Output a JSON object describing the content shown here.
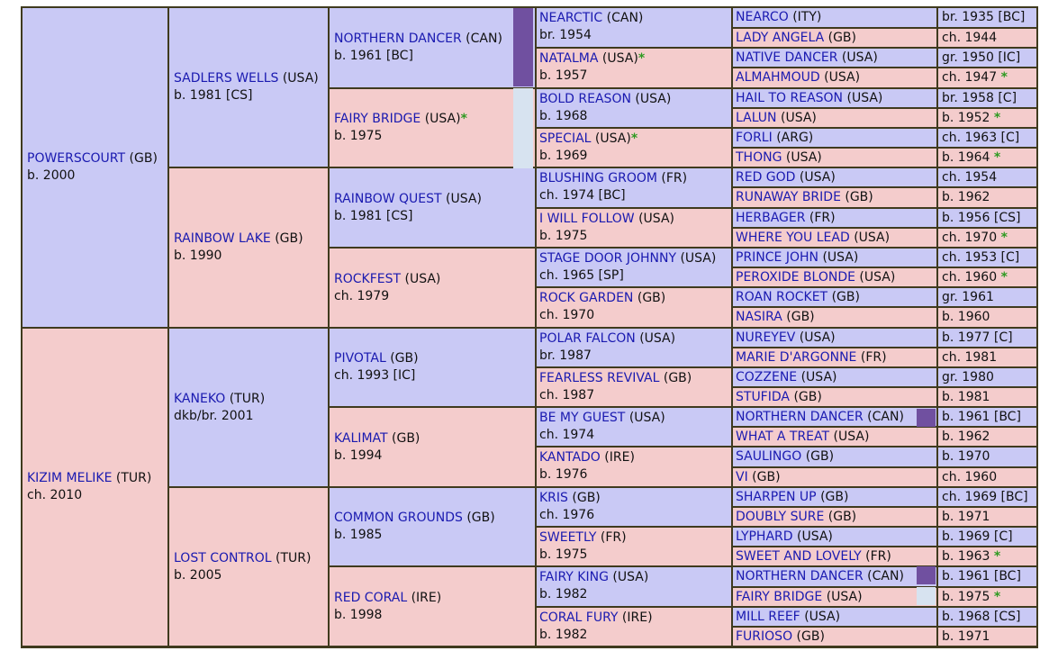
{
  "pedigree": {
    "gen1": [
      {
        "name": "POWERSCOURT",
        "country": "(GB)",
        "info": "b. 2000"
      },
      {
        "name": "KIZIM MELIKE",
        "country": "(TUR)",
        "info": "ch. 2010"
      }
    ],
    "gen2": [
      {
        "name": "SADLERS WELLS",
        "country": "(USA)",
        "info": "b. 1981 [CS]"
      },
      {
        "name": "RAINBOW LAKE",
        "country": "(GB)",
        "info": "b. 1990"
      },
      {
        "name": "KANEKO",
        "country": "(TUR)",
        "info": "dkb/br. 2001"
      },
      {
        "name": "LOST CONTROL",
        "country": "(TUR)",
        "info": "b. 2005"
      }
    ],
    "gen3": [
      {
        "name": "NORTHERN DANCER",
        "country": "(CAN)",
        "info": "b. 1961 [BC]"
      },
      {
        "name": "FAIRY BRIDGE",
        "country": "(USA)",
        "star": "*",
        "info": "b. 1975"
      },
      {
        "name": "RAINBOW QUEST",
        "country": "(USA)",
        "info": "b. 1981 [CS]"
      },
      {
        "name": "ROCKFEST",
        "country": "(USA)",
        "info": "ch. 1979"
      },
      {
        "name": "PIVOTAL",
        "country": "(GB)",
        "info": "ch. 1993 [IC]"
      },
      {
        "name": "KALIMAT",
        "country": "(GB)",
        "info": "b. 1994"
      },
      {
        "name": "COMMON GROUNDS",
        "country": "(GB)",
        "info": "b. 1985"
      },
      {
        "name": "RED CORAL",
        "country": "(IRE)",
        "info": "b. 1998"
      }
    ],
    "gen4": [
      {
        "name": "NEARCTIC",
        "country": "(CAN)",
        "info": "br. 1954"
      },
      {
        "name": "NATALMA",
        "country": "(USA)",
        "star": "*",
        "info": "b. 1957"
      },
      {
        "name": "BOLD REASON",
        "country": "(USA)",
        "info": "b. 1968"
      },
      {
        "name": "SPECIAL",
        "country": "(USA)",
        "star": "*",
        "info": "b. 1969"
      },
      {
        "name": "BLUSHING GROOM",
        "country": "(FR)",
        "info": "ch. 1974 [BC]"
      },
      {
        "name": "I WILL FOLLOW",
        "country": "(USA)",
        "info": "b. 1975"
      },
      {
        "name": "STAGE DOOR JOHNNY",
        "country": "(USA)",
        "info": "ch. 1965 [SP]"
      },
      {
        "name": "ROCK GARDEN",
        "country": "(GB)",
        "info": "ch. 1970"
      },
      {
        "name": "POLAR FALCON",
        "country": "(USA)",
        "info": "br. 1987"
      },
      {
        "name": "FEARLESS REVIVAL",
        "country": "(GB)",
        "info": "ch. 1987"
      },
      {
        "name": "BE MY GUEST",
        "country": "(USA)",
        "info": "ch. 1974"
      },
      {
        "name": "KANTADO",
        "country": "(IRE)",
        "info": "b. 1976"
      },
      {
        "name": "KRIS",
        "country": "(GB)",
        "info": "ch. 1976"
      },
      {
        "name": "SWEETLY",
        "country": "(FR)",
        "info": "b. 1975"
      },
      {
        "name": "FAIRY KING",
        "country": "(USA)",
        "info": "b. 1982"
      },
      {
        "name": "CORAL FURY",
        "country": "(IRE)",
        "info": "b. 1982"
      }
    ],
    "gen5": [
      {
        "name": "NEARCO",
        "country": "(ITY)",
        "info": "br. 1935 [BC]"
      },
      {
        "name": "LADY ANGELA",
        "country": "(GB)",
        "info": "ch. 1944"
      },
      {
        "name": "NATIVE DANCER",
        "country": "(USA)",
        "info": "gr. 1950 [IC]"
      },
      {
        "name": "ALMAHMOUD",
        "country": "(USA)",
        "info": "ch. 1947",
        "star": "*"
      },
      {
        "name": "HAIL TO REASON",
        "country": "(USA)",
        "info": "br. 1958 [C]"
      },
      {
        "name": "LALUN",
        "country": "(USA)",
        "info": "b. 1952",
        "star": "*"
      },
      {
        "name": "FORLI",
        "country": "(ARG)",
        "info": "ch. 1963 [C]"
      },
      {
        "name": "THONG",
        "country": "(USA)",
        "info": "b. 1964",
        "star": "*"
      },
      {
        "name": "RED GOD",
        "country": "(USA)",
        "info": "ch. 1954"
      },
      {
        "name": "RUNAWAY BRIDE",
        "country": "(GB)",
        "info": "b. 1962"
      },
      {
        "name": "HERBAGER",
        "country": "(FR)",
        "info": "b. 1956 [CS]"
      },
      {
        "name": "WHERE YOU LEAD",
        "country": "(USA)",
        "info": "ch. 1970",
        "star": "*"
      },
      {
        "name": "PRINCE JOHN",
        "country": "(USA)",
        "info": "ch. 1953 [C]"
      },
      {
        "name": "PEROXIDE BLONDE",
        "country": "(USA)",
        "info": "ch. 1960",
        "star": "*"
      },
      {
        "name": "ROAN ROCKET",
        "country": "(GB)",
        "info": "gr. 1961"
      },
      {
        "name": "NASIRA",
        "country": "(GB)",
        "info": "b. 1960"
      },
      {
        "name": "NUREYEV",
        "country": "(USA)",
        "info": "b. 1977 [C]"
      },
      {
        "name": "MARIE D'ARGONNE",
        "country": "(FR)",
        "info": "ch. 1981"
      },
      {
        "name": "COZZENE",
        "country": "(USA)",
        "info": "gr. 1980"
      },
      {
        "name": "STUFIDA",
        "country": "(GB)",
        "info": "b. 1981"
      },
      {
        "name": "NORTHERN DANCER",
        "country": "(CAN)",
        "info": "b. 1961 [BC]"
      },
      {
        "name": "WHAT A TREAT",
        "country": "(USA)",
        "info": "b. 1962"
      },
      {
        "name": "SAULINGO",
        "country": "(GB)",
        "info": "b. 1970"
      },
      {
        "name": "VI",
        "country": "(GB)",
        "info": "ch. 1960"
      },
      {
        "name": "SHARPEN UP",
        "country": "(GB)",
        "info": "ch. 1969 [BC]"
      },
      {
        "name": "DOUBLY SURE",
        "country": "(GB)",
        "info": "b. 1971"
      },
      {
        "name": "LYPHARD",
        "country": "(USA)",
        "info": "b. 1969 [C]"
      },
      {
        "name": "SWEET AND LOVELY",
        "country": "(FR)",
        "info": "b. 1963",
        "star": "*"
      },
      {
        "name": "NORTHERN DANCER",
        "country": "(CAN)",
        "info": "b. 1961 [BC]"
      },
      {
        "name": "FAIRY BRIDGE",
        "country": "(USA)",
        "info": "b. 1975",
        "star": "*"
      },
      {
        "name": "MILL REEF",
        "country": "(USA)",
        "info": "b. 1968 [CS]"
      },
      {
        "name": "FURIOSO",
        "country": "(GB)",
        "info": "b. 1971"
      }
    ]
  },
  "colors": {
    "sire": "#c9c9f5",
    "dam": "#f4cccc",
    "link": "#1a1ab0",
    "star": "#2e9a22",
    "border": "#3f3a1e",
    "duplicate_tag": "#7050a0"
  }
}
